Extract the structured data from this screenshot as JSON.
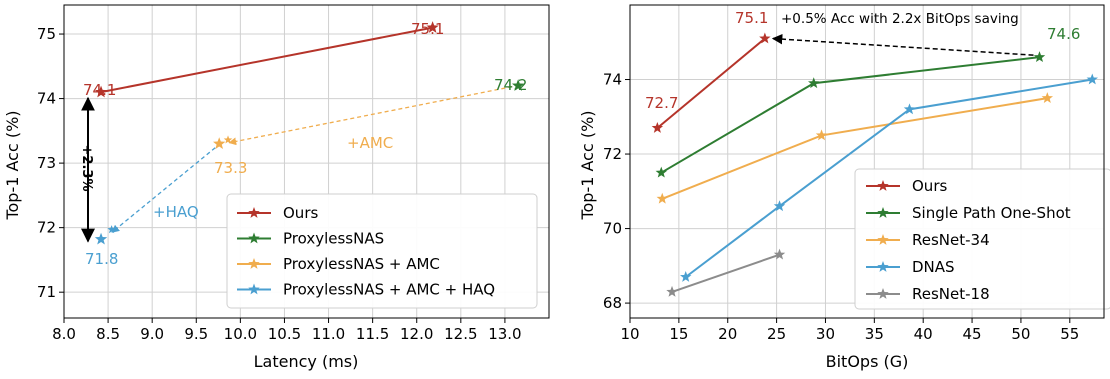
{
  "colors": {
    "red": "#b5342a",
    "green": "#2e7d32",
    "orange": "#f0ad4e",
    "blue": "#4a9fd0",
    "gray": "#8c8c8c",
    "grid": "#d0d0d0"
  },
  "chart_data": [
    {
      "type": "scatter",
      "xlabel": "Latency (ms)",
      "ylabel": "Top-1 Acc (%)",
      "xlim": [
        8.0,
        13.5
      ],
      "ylim": [
        70.6,
        75.45
      ],
      "xticks": [
        "8.0",
        "8.5",
        "9.0",
        "9.5",
        "10.0",
        "10.5",
        "11.0",
        "11.5",
        "12.0",
        "12.5",
        "13.0"
      ],
      "yticks": [
        "71",
        "72",
        "73",
        "74",
        "75"
      ],
      "grid": true,
      "legend_position": "bottom-right",
      "series": [
        {
          "name": "Ours",
          "color": "#b5342a",
          "points": [
            [
              8.42,
              74.1
            ],
            [
              12.18,
              75.1
            ]
          ],
          "connect": "solid"
        },
        {
          "name": "ProxylessNAS",
          "color": "#2e7d32",
          "points": [
            [
              13.15,
              74.2
            ]
          ],
          "connect": "none"
        },
        {
          "name": "ProxylessNAS + AMC",
          "color": "#f0ad4e",
          "points": [
            [
              9.76,
              73.3
            ]
          ],
          "connect": "none"
        },
        {
          "name": "ProxylessNAS + AMC + HAQ",
          "color": "#4a9fd0",
          "points": [
            [
              8.42,
              71.82
            ]
          ],
          "connect": "none"
        }
      ],
      "point_labels": [
        {
          "text": "74.1",
          "color": "#b5342a"
        },
        {
          "text": "75.1",
          "color": "#b5342a"
        },
        {
          "text": "74.2",
          "color": "#2e7d32"
        },
        {
          "text": "73.3",
          "color": "#f0ad4e"
        },
        {
          "text": "71.8",
          "color": "#4a9fd0"
        }
      ],
      "annotations": [
        {
          "text": "+AMC",
          "color": "#f0ad4e"
        },
        {
          "text": "+HAQ",
          "color": "#4a9fd0"
        },
        {
          "text": "+2.3%",
          "color": "#000000"
        }
      ]
    },
    {
      "type": "line",
      "xlabel": "BitOps (G)",
      "ylabel": "Top-1 Acc (%)",
      "xlim": [
        10,
        58.5
      ],
      "ylim": [
        67.6,
        76.0
      ],
      "xticks": [
        "10",
        "15",
        "20",
        "25",
        "30",
        "35",
        "40",
        "45",
        "50",
        "55"
      ],
      "yticks": [
        "68",
        "70",
        "72",
        "74"
      ],
      "grid": true,
      "legend_position": "bottom-right",
      "series": [
        {
          "name": "Ours",
          "color": "#b5342a",
          "points": [
            [
              12.8,
              72.7
            ],
            [
              23.8,
              75.1
            ]
          ]
        },
        {
          "name": "Single Path One-Shot",
          "color": "#2e7d32",
          "points": [
            [
              13.2,
              71.5
            ],
            [
              28.8,
              73.9
            ],
            [
              51.9,
              74.6
            ]
          ]
        },
        {
          "name": "ResNet-34",
          "color": "#f0ad4e",
          "points": [
            [
              13.3,
              70.8
            ],
            [
              29.6,
              72.5
            ],
            [
              52.7,
              73.5
            ]
          ]
        },
        {
          "name": "DNAS",
          "color": "#4a9fd0",
          "points": [
            [
              15.7,
              68.7
            ],
            [
              25.3,
              70.6
            ],
            [
              38.6,
              73.2
            ],
            [
              57.3,
              74.0
            ]
          ]
        },
        {
          "name": "ResNet-18",
          "color": "#8c8c8c",
          "points": [
            [
              14.3,
              68.3
            ],
            [
              25.3,
              69.3
            ]
          ]
        }
      ],
      "point_labels": [
        {
          "text": "72.7",
          "color": "#b5342a"
        },
        {
          "text": "75.1",
          "color": "#b5342a"
        },
        {
          "text": "74.6",
          "color": "#2e7d32"
        }
      ],
      "annotations": [
        {
          "text": "+0.5% Acc with 2.2x BitOps saving",
          "color": "#000000"
        }
      ]
    }
  ]
}
